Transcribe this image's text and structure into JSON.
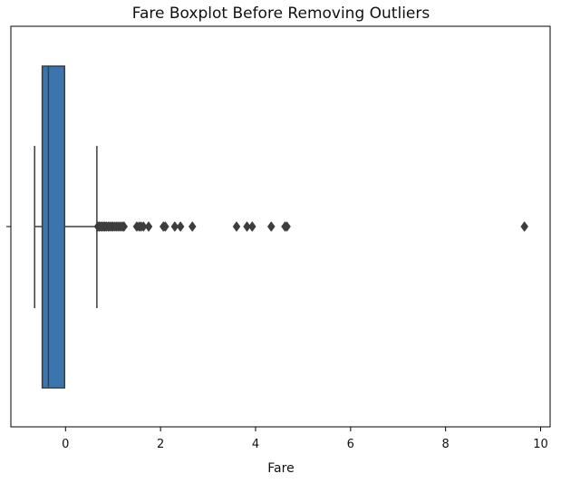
{
  "chart_data": {
    "type": "boxplot",
    "title": "Fare Boxplot Before Removing Outliers",
    "xlabel": "Fare",
    "ylabel": "",
    "xlim": [
      -1.15,
      10.2
    ],
    "xticks": [
      0,
      2,
      4,
      6,
      8,
      10
    ],
    "xtick_labels": [
      "0",
      "2",
      "4",
      "6",
      "8",
      "10"
    ],
    "grid": false,
    "legend": "none",
    "box": {
      "whisker_low": -0.65,
      "q1": -0.49,
      "median": -0.36,
      "q3": -0.02,
      "whisker_high": 0.66,
      "color": "#3c75ad",
      "line_color": "#3d3d3d"
    },
    "outliers": [
      0.68,
      0.71,
      0.74,
      0.77,
      0.8,
      0.83,
      0.86,
      0.9,
      0.93,
      0.97,
      1.0,
      1.04,
      1.08,
      1.12,
      1.16,
      1.2,
      1.23,
      1.5,
      1.55,
      1.59,
      1.64,
      1.75,
      2.06,
      2.1,
      2.3,
      2.42,
      2.67,
      3.6,
      3.82,
      3.93,
      4.33,
      4.62,
      4.66,
      9.66
    ]
  }
}
